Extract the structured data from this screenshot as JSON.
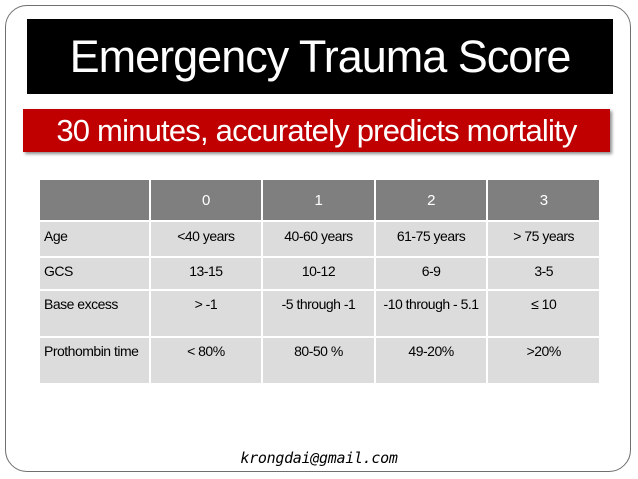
{
  "slide": {
    "title": "Emergency Trauma Score",
    "subtitle": "30 minutes, accurately predicts mortality",
    "footer": "krongdai@gmail.com"
  },
  "table": {
    "headers": [
      "",
      "0",
      "1",
      "2",
      "3"
    ],
    "rows": [
      {
        "label": "Age",
        "cells": [
          "<40 years",
          "40-60 years",
          "61-75 years",
          "> 75 years"
        ]
      },
      {
        "label": "GCS",
        "cells": [
          "13-15",
          "10-12",
          "6-9",
          "3-5"
        ]
      },
      {
        "label": "Base excess",
        "cells": [
          "> -1",
          "-5 through -1",
          "-10 through - 5.1",
          "≤ 10"
        ]
      },
      {
        "label": "Prothombin time",
        "cells": [
          "< 80%",
          "80-50 %",
          "49-20%",
          ">20%"
        ]
      }
    ]
  },
  "colors": {
    "title_bg": "#000000",
    "subtitle_bg": "#c00000",
    "header_bg": "#7f7f7f",
    "cell_bg": "#dcdcdc"
  }
}
